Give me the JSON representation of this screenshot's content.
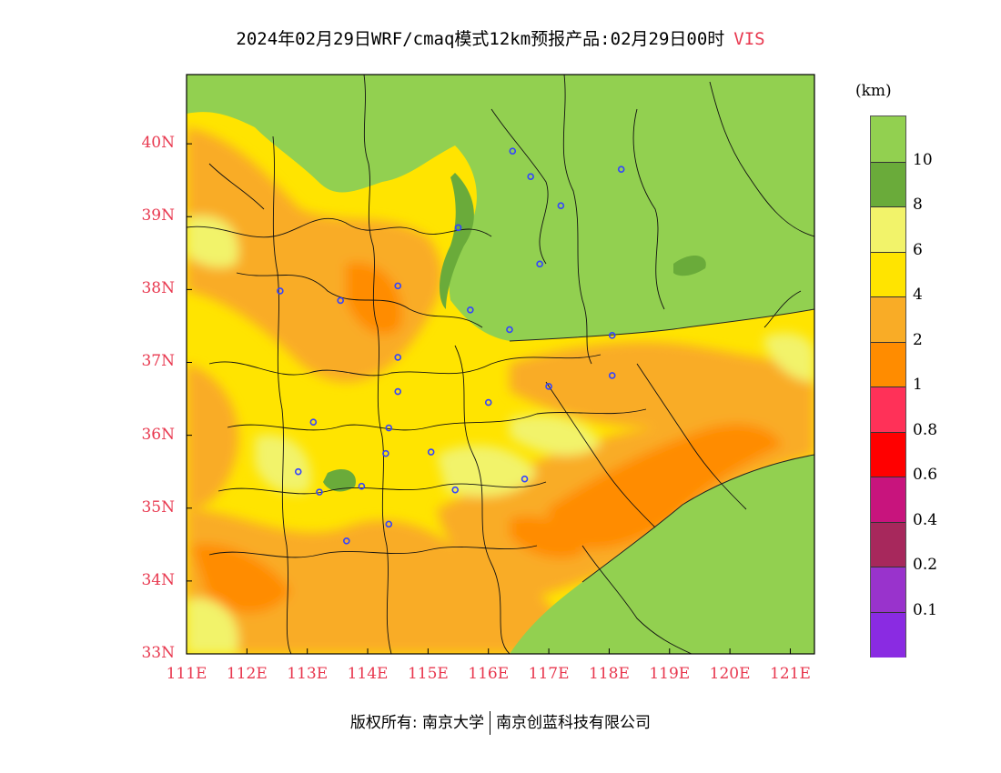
{
  "header": {
    "title": "2024年02月29日WRF/cmaq模式12km预报产品:02月29日00时",
    "variable": "VIS"
  },
  "axes": {
    "lat_labels": [
      "40N",
      "39N",
      "38N",
      "37N",
      "36N",
      "35N",
      "34N",
      "33N"
    ],
    "lat_values": [
      40,
      39,
      38,
      37,
      36,
      35,
      34,
      33
    ],
    "lon_labels": [
      "111E",
      "112E",
      "113E",
      "114E",
      "115E",
      "116E",
      "117E",
      "118E",
      "119E",
      "120E",
      "121E"
    ],
    "lon_values": [
      111,
      112,
      113,
      114,
      115,
      116,
      117,
      118,
      119,
      120,
      121
    ],
    "lon_range": [
      111,
      121.4
    ],
    "lat_range": [
      33,
      40.95
    ]
  },
  "legend": {
    "unit": "(km)",
    "labels": [
      "10",
      "8",
      "6",
      "4",
      "2",
      "1",
      "0.8",
      "0.6",
      "0.4",
      "0.2",
      "0.1"
    ],
    "colors": [
      "#92d050",
      "#6aab3a",
      "#f2f36a",
      "#ffe400",
      "#f9ac26",
      "#ff8c00",
      "#ff3158",
      "#ff0000",
      "#c8147d",
      "#a7285c",
      "#9933cc",
      "#8a2be2"
    ]
  },
  "stations": [
    {
      "lon": 116.4,
      "lat": 39.9
    },
    {
      "lon": 116.7,
      "lat": 39.55
    },
    {
      "lon": 118.2,
      "lat": 39.65
    },
    {
      "lon": 117.2,
      "lat": 39.15
    },
    {
      "lon": 115.5,
      "lat": 38.85
    },
    {
      "lon": 116.85,
      "lat": 38.35
    },
    {
      "lon": 112.55,
      "lat": 37.98
    },
    {
      "lon": 113.55,
      "lat": 37.85
    },
    {
      "lon": 114.5,
      "lat": 38.05
    },
    {
      "lon": 115.7,
      "lat": 37.72
    },
    {
      "lon": 116.35,
      "lat": 37.45
    },
    {
      "lon": 118.05,
      "lat": 37.37
    },
    {
      "lon": 114.5,
      "lat": 37.07
    },
    {
      "lon": 114.5,
      "lat": 36.6
    },
    {
      "lon": 117.0,
      "lat": 36.67
    },
    {
      "lon": 118.05,
      "lat": 36.82
    },
    {
      "lon": 116.0,
      "lat": 36.45
    },
    {
      "lon": 113.1,
      "lat": 36.18
    },
    {
      "lon": 114.35,
      "lat": 36.1
    },
    {
      "lon": 114.3,
      "lat": 35.75
    },
    {
      "lon": 115.05,
      "lat": 35.77
    },
    {
      "lon": 112.85,
      "lat": 35.5
    },
    {
      "lon": 113.9,
      "lat": 35.3
    },
    {
      "lon": 113.2,
      "lat": 35.22
    },
    {
      "lon": 116.6,
      "lat": 35.4
    },
    {
      "lon": 115.45,
      "lat": 35.25
    },
    {
      "lon": 114.35,
      "lat": 34.78
    },
    {
      "lon": 113.65,
      "lat": 34.55
    }
  ],
  "footer": {
    "left": "版权所有: 南京大学",
    "right": "南京创蓝科技有限公司"
  }
}
